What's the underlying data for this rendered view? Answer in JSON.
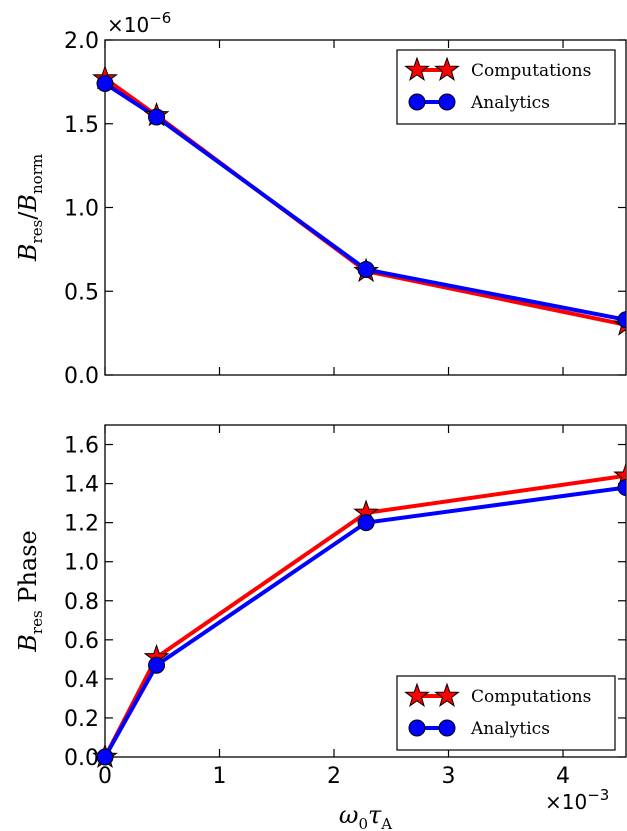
{
  "chart_data": [
    {
      "type": "line",
      "title": "",
      "xlabel": "",
      "ylabel": "B_res / B_norm",
      "ylabel_parts": {
        "base": "B",
        "sub": "res",
        "slash": "/",
        "base2": "B",
        "sub2": "norm"
      },
      "y_exponent": {
        "base": "×10",
        "sup": "−6"
      },
      "x": [
        0,
        0.00045,
        0.00228,
        0.00455
      ],
      "xlim": [
        0,
        0.00455
      ],
      "ylim": [
        0,
        2.0
      ],
      "yticks": [
        "0.0",
        "0.5",
        "1.0",
        "1.5",
        "2.0"
      ],
      "ytick_values": [
        0,
        0.5,
        1.0,
        1.5,
        2.0
      ],
      "xtick_values": [
        0,
        0.001,
        0.002,
        0.003,
        0.004
      ],
      "grid": false,
      "legend_position": "top-right",
      "series": [
        {
          "name": "Computations",
          "color": "#ff0000",
          "marker": "star",
          "values": [
            1.77,
            1.55,
            0.62,
            0.3
          ]
        },
        {
          "name": "Analytics",
          "color": "#0000ff",
          "marker": "circle",
          "values": [
            1.74,
            1.54,
            0.63,
            0.33
          ]
        }
      ]
    },
    {
      "type": "line",
      "title": "",
      "xlabel": "ω0 τA",
      "xlabel_parts": {
        "omega": "ω",
        "omega_sub": "0",
        "tau": "τ",
        "tau_sub": "A"
      },
      "ylabel": "B_res Phase",
      "ylabel_parts": {
        "base": "B",
        "sub": "res",
        "word": "Phase"
      },
      "x_exponent": {
        "base": "×10",
        "sup": "−3"
      },
      "x": [
        0,
        0.00045,
        0.00228,
        0.00455
      ],
      "xlim": [
        0,
        0.00455
      ],
      "ylim": [
        0,
        1.7
      ],
      "xticks": [
        "0",
        "1",
        "2",
        "3",
        "4"
      ],
      "xtick_values": [
        0,
        0.001,
        0.002,
        0.003,
        0.004
      ],
      "yticks": [
        "0.0",
        "0.2",
        "0.4",
        "0.6",
        "0.8",
        "1.0",
        "1.2",
        "1.4",
        "1.6"
      ],
      "ytick_values": [
        0,
        0.2,
        0.4,
        0.6,
        0.8,
        1.0,
        1.2,
        1.4,
        1.6
      ],
      "grid": false,
      "legend_position": "bottom-right",
      "series": [
        {
          "name": "Computations",
          "color": "#ff0000",
          "marker": "star",
          "values": [
            0.0,
            0.51,
            1.25,
            1.44
          ]
        },
        {
          "name": "Analytics",
          "color": "#0000ff",
          "marker": "circle",
          "values": [
            0.0,
            0.47,
            1.2,
            1.38
          ]
        }
      ]
    }
  ]
}
